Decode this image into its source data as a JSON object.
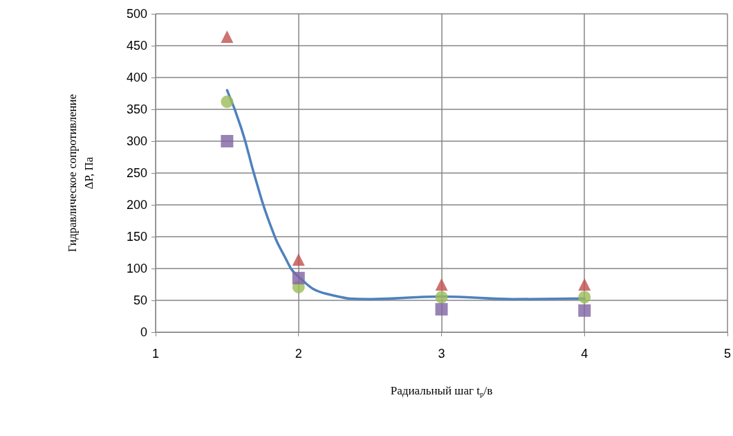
{
  "chart_data": {
    "type": "scatter",
    "xlabel": "Радиальный шаг t$_{p}$/в",
    "ylabel": "Гидравлическое сопротивление\nΔP, Па",
    "xlim": [
      1,
      5
    ],
    "xticks": [
      1,
      2,
      3,
      4,
      5
    ],
    "ylim": [
      0,
      500
    ],
    "yticks": [
      0,
      50,
      100,
      150,
      200,
      250,
      300,
      350,
      400,
      450,
      500
    ],
    "grid": true,
    "series": [
      {
        "type": "line",
        "color": "#4f81bd",
        "marker": "none",
        "x": [
          1.5,
          1.6,
          1.7,
          1.8,
          1.9,
          2,
          2.2,
          2.5,
          3,
          3.5,
          4
        ],
        "values": [
          380,
          320,
          240,
          170,
          120,
          87,
          60,
          52,
          56,
          52,
          53
        ]
      },
      {
        "color": "#c0504d",
        "marker": "triangle",
        "x": [
          1.5,
          2,
          3,
          4
        ],
        "values": [
          464,
          114,
          75,
          75
        ]
      },
      {
        "color": "#9bbb59",
        "marker": "circle",
        "x": [
          1.5,
          2,
          3,
          4
        ],
        "values": [
          362,
          71,
          55,
          55
        ]
      },
      {
        "color": "#8064a2",
        "marker": "square",
        "x": [
          1.5,
          2,
          3,
          4
        ],
        "values": [
          300,
          85,
          36,
          34
        ]
      }
    ]
  }
}
